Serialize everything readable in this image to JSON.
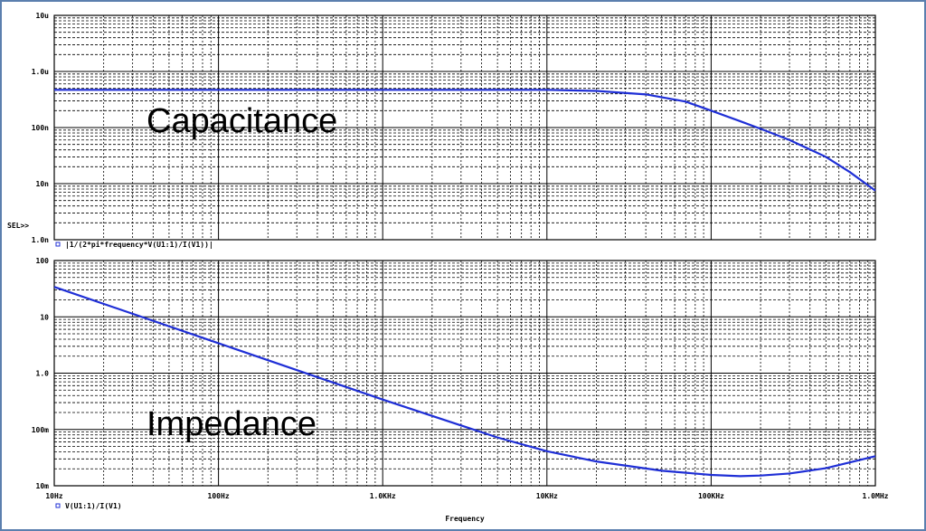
{
  "colors": {
    "trace": "#1f2fd6",
    "grid": "#000000",
    "frame": "#5b7fae",
    "legend_marker": "#1f2fd6"
  },
  "x_ticks": [
    "10Hz",
    "100Hz",
    "1.0KHz",
    "10KHz",
    "100KHz",
    "1.0MHz"
  ],
  "x_axis_label": "Frequency",
  "sel_marker": "SEL>>",
  "chart_data": [
    {
      "type": "line",
      "panel": "top",
      "annotation": "Capacitance",
      "legend": "|1/(2*pi*frequency*V(U1:1)/I(V1))|",
      "x_scale": "log",
      "y_scale": "log",
      "xlim": [
        10,
        1000000
      ],
      "ylim": [
        1e-09,
        1e-05
      ],
      "y_ticks": [
        "10u",
        "1.0u",
        "100n",
        "10n",
        "1.0n"
      ],
      "series": [
        {
          "x": [
            10,
            100,
            1000,
            10000,
            20000,
            40000,
            70000,
            100000,
            150000,
            200000,
            300000,
            500000,
            700000,
            1000000
          ],
          "y": [
            4.7e-07,
            4.7e-07,
            4.7e-07,
            4.7e-07,
            4.5e-07,
            3.9e-07,
            2.9e-07,
            2e-07,
            1.3e-07,
            9.5e-08,
            6e-08,
            3e-08,
            1.6e-08,
            7.5e-09
          ]
        }
      ]
    },
    {
      "type": "line",
      "panel": "bottom",
      "annotation": "Impedance",
      "legend": "V(U1:1)/I(V1)",
      "x_scale": "log",
      "y_scale": "log",
      "xlim": [
        10,
        1000000
      ],
      "ylim": [
        0.01,
        100
      ],
      "y_ticks": [
        "100",
        "10",
        "1.0",
        "100m",
        "10m"
      ],
      "series": [
        {
          "x": [
            10,
            100,
            1000,
            5000,
            10000,
            20000,
            50000,
            100000,
            150000,
            200000,
            300000,
            500000,
            1000000
          ],
          "y": [
            34,
            3.4,
            0.34,
            0.072,
            0.041,
            0.027,
            0.0185,
            0.0156,
            0.0148,
            0.0152,
            0.0165,
            0.0205,
            0.0335
          ]
        }
      ]
    }
  ]
}
